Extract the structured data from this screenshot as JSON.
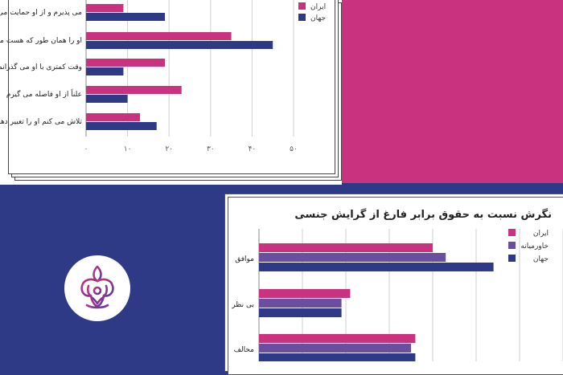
{
  "colors": {
    "iran": "#c8327e",
    "middle_east": "#6a4ea0",
    "world": "#2e3a86"
  },
  "chart_data": [
    {
      "type": "bar",
      "orientation": "horizontal",
      "title": "",
      "categories": [
        "می پذیرم و از او حمایت می کنم",
        "او را همان طور که هست می پذیرم",
        "وقت کمتری با او می گذرانم",
        "علناً از او فاصله می گیرم",
        "تلاش می کنم او را تغییر دهم"
      ],
      "series": [
        {
          "name": "ایران",
          "values": [
            9,
            35,
            19,
            23,
            13
          ]
        },
        {
          "name": "جهان",
          "values": [
            19,
            45,
            9,
            10,
            17
          ]
        }
      ],
      "xticks": [
        "۰",
        "۱۰",
        "۲۰",
        "۳۰",
        "۴۰",
        "۵۰"
      ],
      "xlim": [
        0,
        50
      ],
      "legend": "top-right",
      "grid": true
    },
    {
      "type": "bar",
      "orientation": "horizontal",
      "title": "نگرش نسبت به حقوق برابر فارغ از گرایش جنسی",
      "categories": [
        "موافق",
        "بی نظر",
        "مخالف"
      ],
      "series": [
        {
          "name": "ایران",
          "values": [
            40,
            21,
            36
          ]
        },
        {
          "name": "خاورمیانه",
          "values": [
            43,
            19,
            35
          ]
        },
        {
          "name": "جهان",
          "values": [
            54,
            19,
            36
          ]
        }
      ],
      "xlim": [
        0,
        70
      ],
      "legend": "top-right",
      "grid": true
    }
  ]
}
